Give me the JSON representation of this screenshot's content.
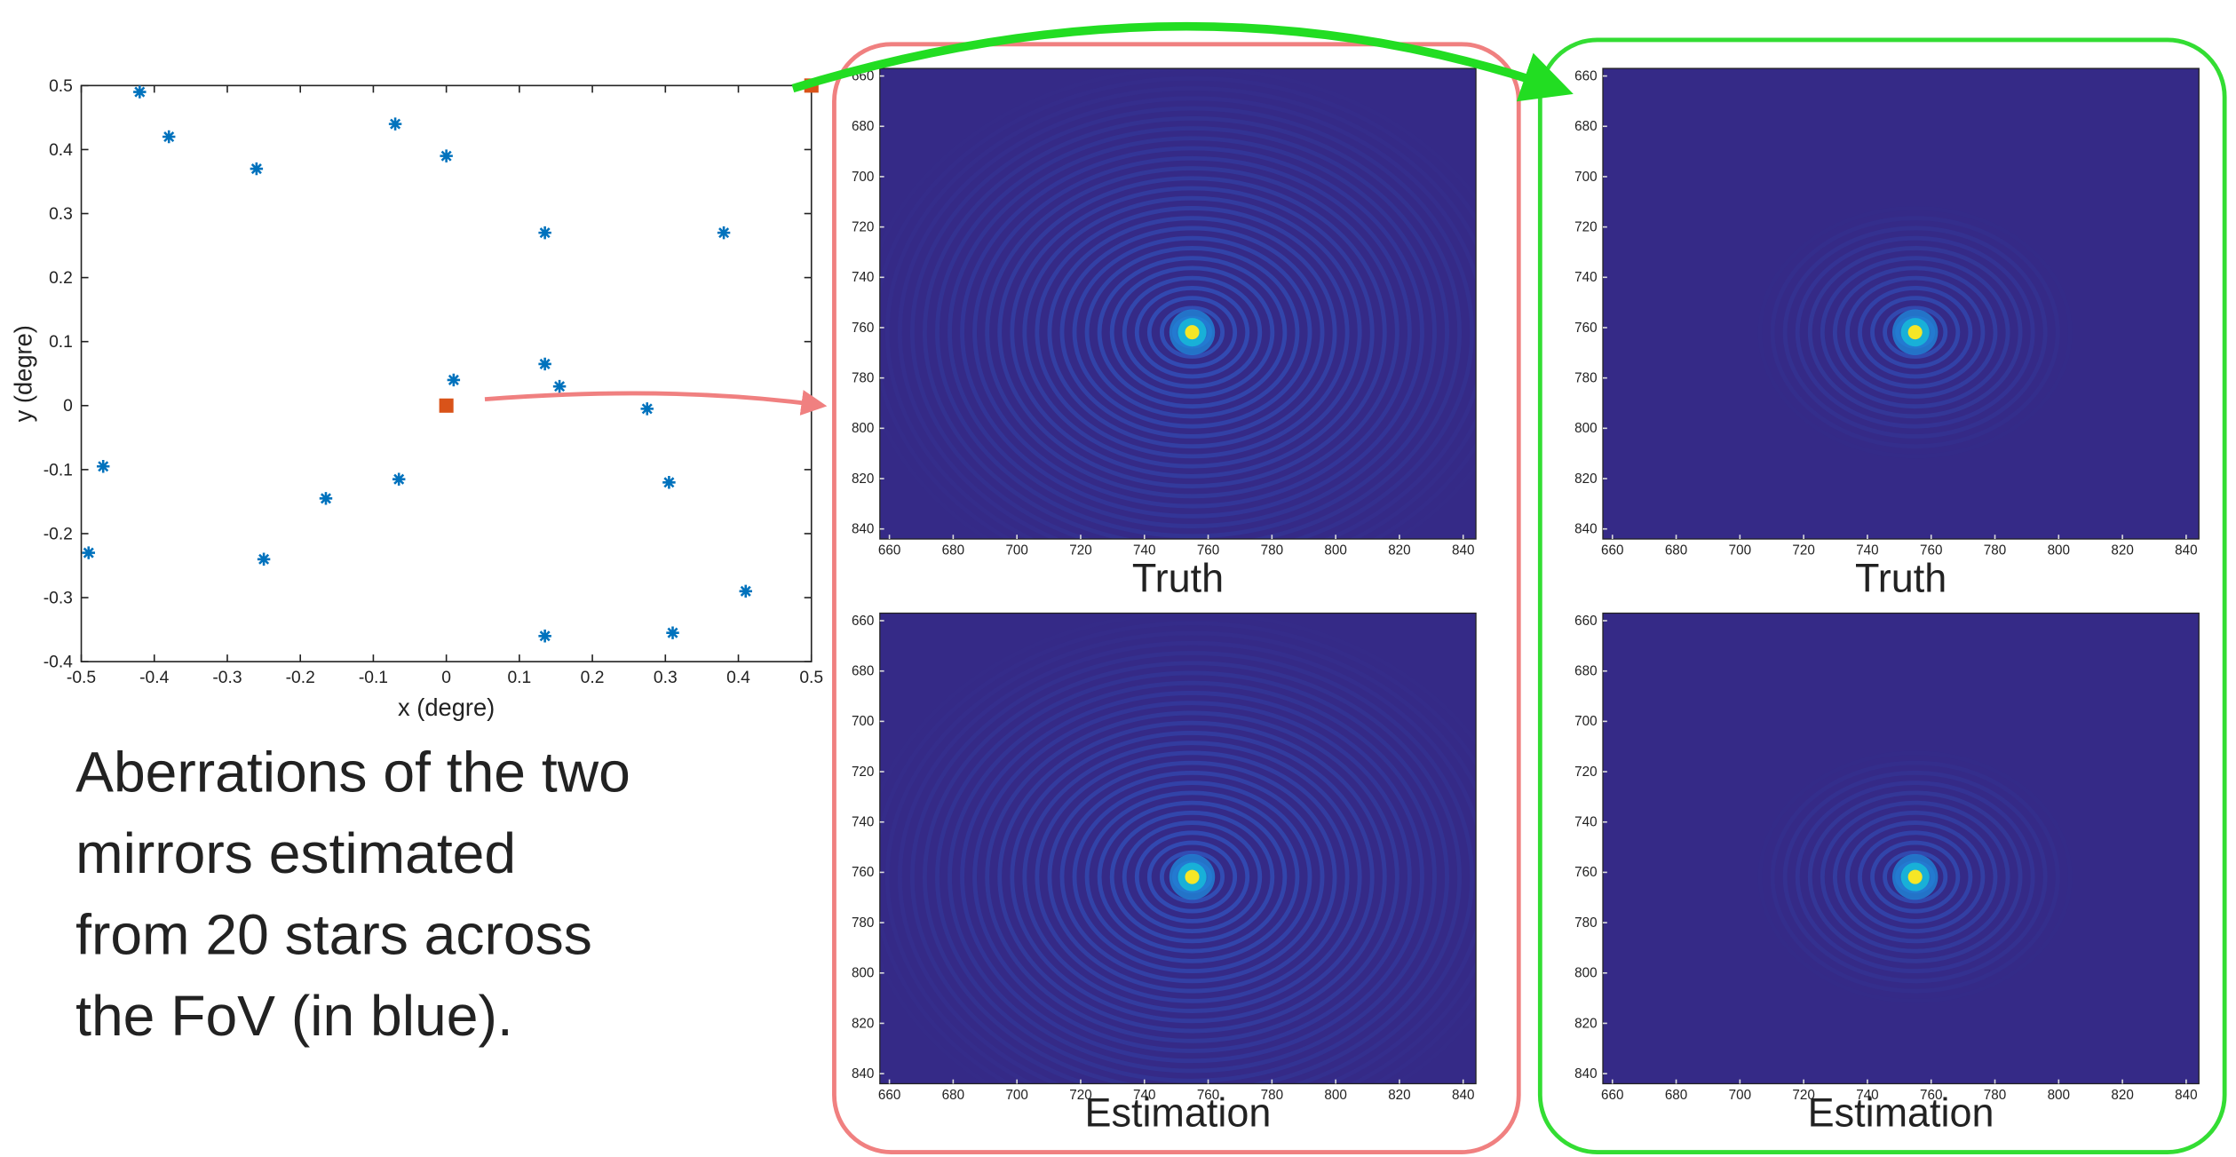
{
  "chart_data": [
    {
      "type": "scatter",
      "xlabel": "x (degre)",
      "ylabel": "y (degre)",
      "xlim": [
        -0.5,
        0.5
      ],
      "ylim": [
        -0.4,
        0.5
      ],
      "xticks": [
        -0.5,
        -0.4,
        -0.3,
        -0.2,
        -0.1,
        0,
        0.1,
        0.2,
        0.3,
        0.4,
        0.5
      ],
      "yticks": [
        -0.4,
        -0.3,
        -0.2,
        -0.1,
        0,
        0.1,
        0.2,
        0.3,
        0.4,
        0.5
      ],
      "series": [
        {
          "color": "#0072bd",
          "marker": "asterisk",
          "x": [
            -0.42,
            -0.38,
            -0.26,
            -0.07,
            0.0,
            0.135,
            0.38,
            0.135,
            0.01,
            0.155,
            0.275,
            -0.47,
            -0.065,
            -0.165,
            0.305,
            -0.49,
            -0.25,
            0.41,
            0.135,
            0.31
          ],
          "values": [
            0.49,
            0.42,
            0.37,
            0.44,
            0.39,
            0.27,
            0.27,
            0.065,
            0.04,
            0.03,
            -0.005,
            -0.095,
            -0.115,
            -0.145,
            -0.12,
            -0.23,
            -0.24,
            -0.29,
            -0.36,
            -0.355
          ]
        },
        {
          "color": "#d95319",
          "marker": "square",
          "x": [
            0,
            0.5
          ],
          "values": [
            0,
            0.5
          ]
        }
      ]
    },
    {
      "type": "image",
      "caption": "Truth",
      "xlim": [
        657,
        844
      ],
      "ylim": [
        657,
        844
      ],
      "y_reversed": true,
      "xticks": [
        660,
        680,
        700,
        720,
        740,
        760,
        780,
        800,
        820,
        840
      ],
      "yticks": [
        660,
        680,
        700,
        720,
        740,
        760,
        780,
        800,
        820,
        840
      ]
    },
    {
      "type": "image",
      "caption": "Truth",
      "xlim": [
        657,
        844
      ],
      "ylim": [
        657,
        844
      ],
      "y_reversed": true,
      "xticks": [
        660,
        680,
        700,
        720,
        740,
        760,
        780,
        800,
        820,
        840
      ],
      "yticks": [
        660,
        680,
        700,
        720,
        740,
        760,
        780,
        800,
        820,
        840
      ]
    },
    {
      "type": "image",
      "caption": "Estimation",
      "xlim": [
        657,
        844
      ],
      "ylim": [
        657,
        844
      ],
      "y_reversed": true,
      "xticks": [
        660,
        680,
        700,
        720,
        740,
        760,
        780,
        800,
        820,
        840
      ],
      "yticks": [
        660,
        680,
        700,
        720,
        740,
        760,
        780,
        800,
        820,
        840
      ]
    },
    {
      "type": "image",
      "caption": "Estimation",
      "xlim": [
        657,
        844
      ],
      "ylim": [
        657,
        844
      ],
      "y_reversed": true,
      "xticks": [
        660,
        680,
        700,
        720,
        740,
        760,
        780,
        800,
        820,
        840
      ],
      "yticks": [
        660,
        680,
        700,
        720,
        740,
        760,
        780,
        800,
        820,
        840
      ]
    }
  ],
  "text": {
    "lines": [
      "Aberrations of the two",
      "mirrors estimated",
      "from 20 stars across",
      "the FoV (in blue)."
    ]
  }
}
